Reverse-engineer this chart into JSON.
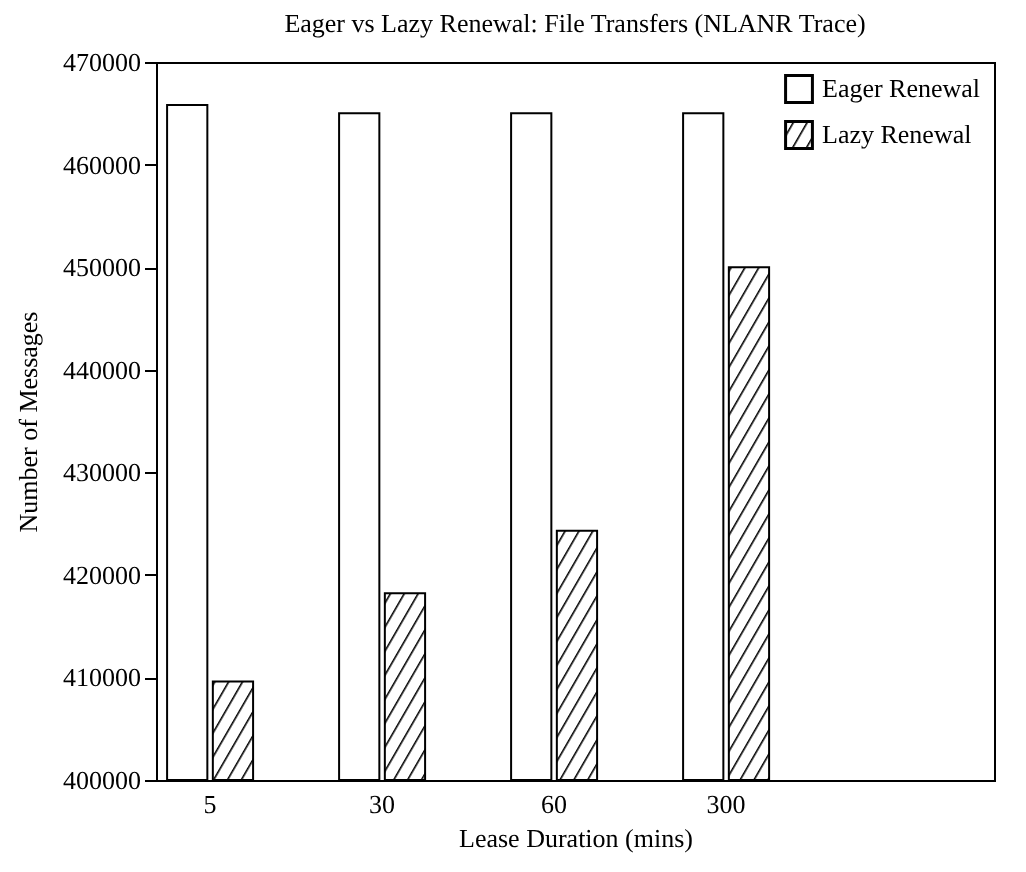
{
  "chart_data": {
    "type": "bar",
    "title": "Eager vs Lazy Renewal: File Transfers (NLANR Trace)",
    "xlabel": "Lease Duration (mins)",
    "ylabel": "Number of Messages",
    "categories": [
      "5",
      "30",
      "60",
      "300"
    ],
    "series": [
      {
        "name": "Eager Renewal",
        "color": "#ffffff",
        "values": [
          465800,
          465000,
          465000,
          465000
        ]
      },
      {
        "name": "Lazy Renewal",
        "color": "#000000",
        "values": [
          409600,
          418200,
          424300,
          450000
        ]
      }
    ],
    "ylim": [
      400000,
      470000
    ],
    "yticks": [
      400000,
      410000,
      420000,
      430000,
      440000,
      450000,
      460000,
      470000
    ],
    "grid": false,
    "legend": "top right"
  }
}
